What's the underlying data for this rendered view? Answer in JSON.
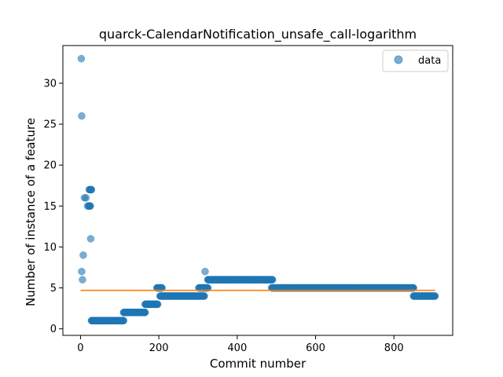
{
  "chart_data": {
    "type": "scatter",
    "title": "quarck-CalendarNotification_unsafe_call-logarithm",
    "xlabel": "Commit number",
    "ylabel": "Number of instance of a feature",
    "xlim": [
      -45,
      950
    ],
    "ylim": [
      -0.8,
      34.6
    ],
    "xticks": [
      0,
      200,
      400,
      600,
      800
    ],
    "yticks": [
      0,
      5,
      10,
      15,
      20,
      25,
      30
    ],
    "legend": {
      "position": "top-right",
      "entries": [
        "data"
      ]
    },
    "colors": {
      "points": "#1f77b4",
      "fit_line": "#ff7f0e"
    },
    "series": [
      {
        "name": "data",
        "points": [
          [
            2,
            33
          ],
          [
            3,
            26
          ],
          [
            3,
            7
          ],
          [
            5,
            6
          ],
          [
            7,
            9
          ],
          [
            10,
            16
          ],
          [
            14,
            16
          ],
          [
            18,
            15
          ],
          [
            22,
            17
          ],
          [
            26,
            11
          ],
          [
            318,
            7
          ]
        ],
        "segments": [
          {
            "x_start": 21,
            "x_end": 25,
            "y": 15
          },
          {
            "x_start": 24,
            "x_end": 28,
            "y": 17
          },
          {
            "x_start": 28,
            "x_end": 110,
            "y": 1
          },
          {
            "x_start": 110,
            "x_end": 165,
            "y": 2
          },
          {
            "x_start": 165,
            "x_end": 197,
            "y": 3
          },
          {
            "x_start": 195,
            "x_end": 208,
            "y": 5
          },
          {
            "x_start": 203,
            "x_end": 303,
            "y": 4
          },
          {
            "x_start": 302,
            "x_end": 318,
            "y": 5
          },
          {
            "x_start": 305,
            "x_end": 316,
            "y": 4
          },
          {
            "x_start": 318,
            "x_end": 325,
            "y": 5
          },
          {
            "x_start": 325,
            "x_end": 490,
            "y": 6
          },
          {
            "x_start": 488,
            "x_end": 850,
            "y": 5
          },
          {
            "x_start": 850,
            "x_end": 905,
            "y": 4
          }
        ]
      }
    ],
    "fit_line": {
      "x": [
        0,
        905
      ],
      "y": [
        4.7,
        4.7
      ]
    }
  }
}
